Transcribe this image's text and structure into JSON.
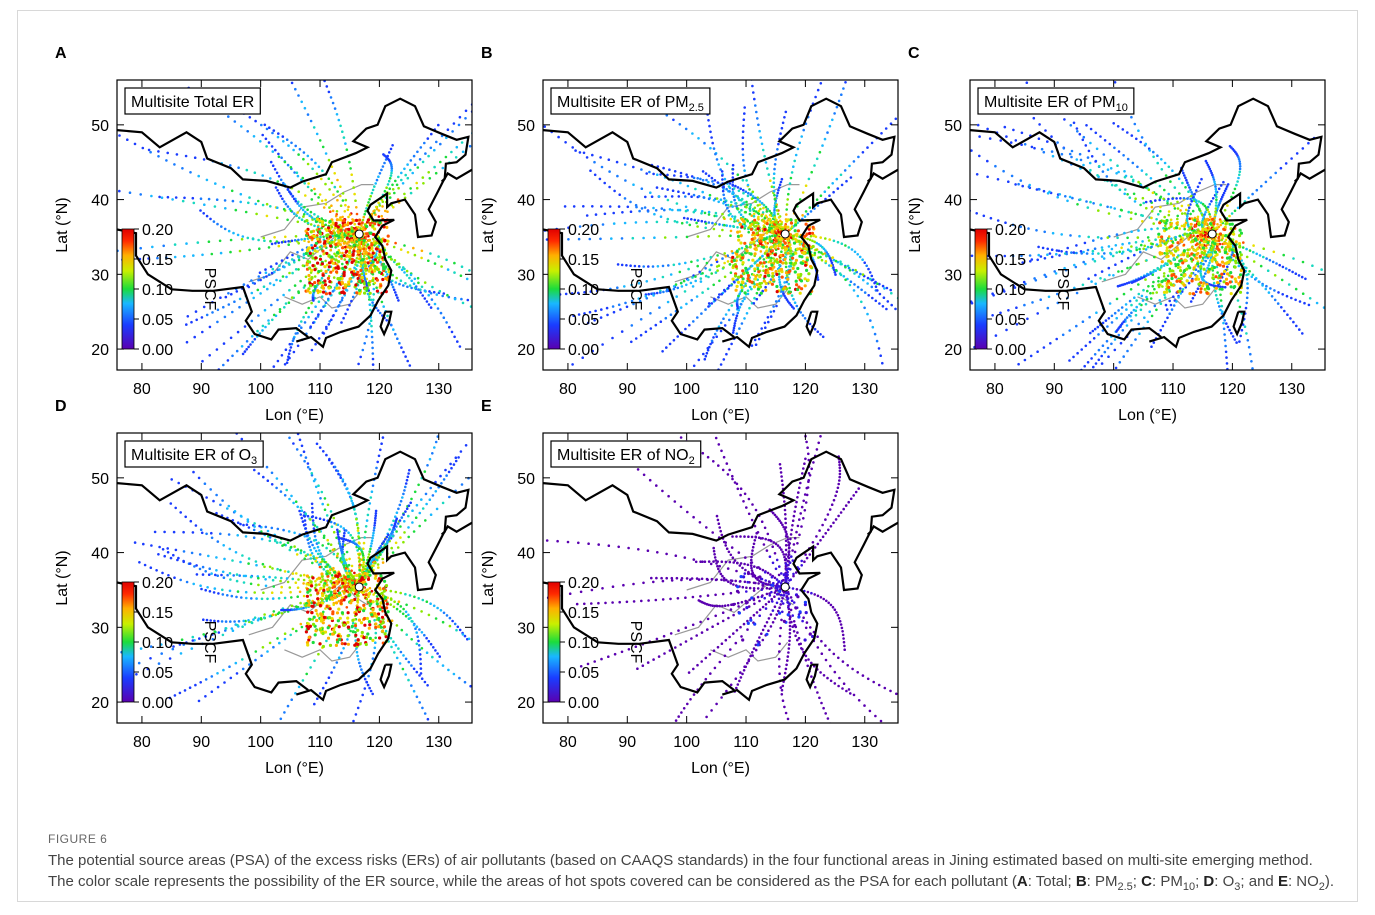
{
  "figure": {
    "panels": [
      {
        "letter": "A",
        "title": [
          {
            "text": "Multisite Total ER"
          }
        ]
      },
      {
        "letter": "B",
        "title": [
          {
            "text": "Multisite ER of PM"
          },
          {
            "text": "2.5",
            "style": "sub"
          }
        ]
      },
      {
        "letter": "C",
        "title": [
          {
            "text": "Multisite ER of PM"
          },
          {
            "text": "10",
            "style": "sub"
          }
        ]
      },
      {
        "letter": "D",
        "title": [
          {
            "text": "Multisite ER of O"
          },
          {
            "text": "3",
            "style": "sub"
          }
        ]
      },
      {
        "letter": "E",
        "title": [
          {
            "text": "Multisite ER of NO"
          },
          {
            "text": "2",
            "style": "sub"
          }
        ]
      }
    ],
    "axes": {
      "xlim": [
        75.8,
        135.6
      ],
      "ylim": [
        17.2,
        56
      ],
      "xticks": [
        80,
        90,
        100,
        110,
        120,
        130
      ],
      "yticks": [
        20,
        30,
        40,
        50
      ],
      "xlabel": "Lon (°E)",
      "ylabel": "Lat (°N)"
    },
    "colorbar": {
      "label": "PSCF",
      "lim": [
        0,
        0.2
      ],
      "ticks": [
        {
          "value": 0,
          "label": "0.00"
        },
        {
          "value": 0.05,
          "label": "0.05"
        },
        {
          "value": 0.1,
          "label": "0.10"
        },
        {
          "value": 0.15,
          "label": "0.15"
        },
        {
          "value": 0.2,
          "label": "0.20"
        }
      ]
    }
  },
  "caption": {
    "label": "FIGURE 6",
    "segments": [
      {
        "text": "The potential source areas (PSA) of the excess risks (ERs) of air pollutants (based on CAAQS standards) in the four functional areas in Jining estimated based on multi-site emerging method. The color scale represents the possibility of the ER source, while the areas of hot spots covered can be considered as the PSA for each pollutant ("
      },
      {
        "text": "A",
        "style": "b"
      },
      {
        "text": ": Total; "
      },
      {
        "text": "B",
        "style": "b"
      },
      {
        "text": ": PM"
      },
      {
        "text": "2.5",
        "style": "sub"
      },
      {
        "text": "; "
      },
      {
        "text": "C",
        "style": "b"
      },
      {
        "text": ": PM"
      },
      {
        "text": "10",
        "style": "sub"
      },
      {
        "text": "; "
      },
      {
        "text": "D",
        "style": "b"
      },
      {
        "text": ": O"
      },
      {
        "text": "3",
        "style": "sub"
      },
      {
        "text": "; and "
      },
      {
        "text": "E",
        "style": "b"
      },
      {
        "text": ": NO"
      },
      {
        "text": "2",
        "style": "sub"
      },
      {
        "text": ")."
      }
    ]
  }
}
